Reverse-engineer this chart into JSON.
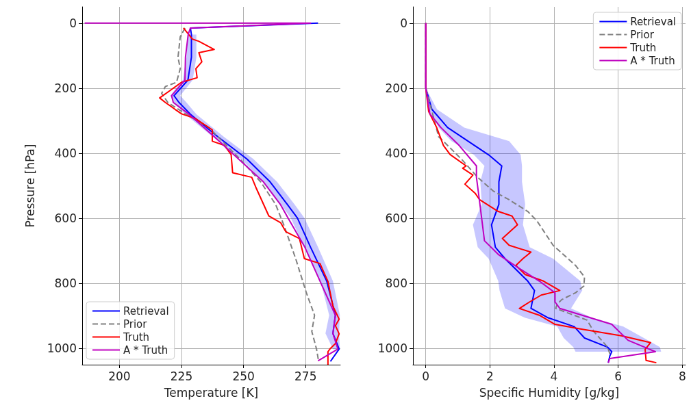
{
  "chart_data": [
    {
      "type": "line",
      "orientation": "horizontal",
      "xlabel": "Temperature [K]",
      "ylabel": "Pressure [hPa]",
      "xlim": [
        185,
        289
      ],
      "xticks": [
        200,
        225,
        250,
        275
      ],
      "ylim": [
        1050,
        -50
      ],
      "yticks": [
        0,
        200,
        400,
        600,
        800,
        1000
      ],
      "grid": true,
      "legend": "bottom left",
      "marker": "none",
      "series": [
        {
          "name": "Retrieval",
          "color": "#0000ff",
          "values": [
            280,
            228.6,
            229,
            229,
            227.6,
            222,
            224,
            228.6,
            239.6,
            251.4,
            260.7,
            267.6,
            271.7,
            277,
            283.5,
            287,
            286,
            288.5,
            285
          ],
          "x": [
            0,
            15,
            35,
            105,
            175,
            223,
            244,
            280,
            349,
            418,
            488,
            557,
            599,
            689,
            793,
            898,
            954,
            1002,
            1040
          ],
          "lower": [
            null,
            null,
            227.5,
            227,
            225.5,
            220.5,
            222,
            226.5,
            237.5,
            249,
            258,
            265,
            269,
            274.5,
            281,
            284.5,
            283,
            286,
            null
          ],
          "upper": [
            null,
            null,
            231,
            231,
            229.5,
            224.5,
            227,
            231,
            242,
            254,
            263.5,
            270.5,
            274.5,
            280,
            286,
            288.8,
            288.5,
            288.8,
            null
          ]
        },
        {
          "name": "Prior",
          "color": "#808080",
          "line_style": "dashed",
          "values": [
            226.4,
            224.5,
            223.6,
            224.5,
            223,
            218.5,
            217,
            219.5,
            226.6,
            236,
            248.6,
            256.9,
            262.9,
            266.2,
            271,
            275.3,
            278.6,
            277.5,
            279.4,
            280.2
          ],
          "x": [
            15,
            42,
            105,
            140,
            182,
            195,
            216,
            244,
            279,
            321,
            418,
            488,
            557,
            620,
            724,
            829,
            898,
            948,
            1002,
            1038
          ]
        },
        {
          "name": "Truth",
          "color": "#ff0000",
          "values": [
            225.8,
            229.4,
            232,
            238.2,
            232,
            233.2,
            230.8,
            231.3,
            225,
            221.2,
            216.2,
            218.5,
            225,
            230.5,
            237.4,
            237.4,
            242.3,
            245,
            245.6,
            253.3,
            255.2,
            260.2,
            265,
            267,
            272.5,
            274.5,
            280.8,
            281.6,
            284,
            286,
            288.5,
            287,
            288.5,
            287,
            285,
            284,
            284
          ],
          "x": [
            15,
            49,
            56,
            81,
            91,
            119,
            140,
            168,
            182,
            203,
            230,
            244,
            279,
            293,
            328,
            363,
            376,
            404,
            460,
            474,
            509,
            593,
            614,
            641,
            662,
            724,
            739,
            753,
            794,
            870,
            910,
            930,
            955,
            985,
            1000,
            1010,
            1050
          ]
        },
        {
          "name": "A * Truth",
          "color": "#bf00bf",
          "values": [
            186,
            277,
            228.6,
            227.7,
            226.6,
            226.4,
            221,
            221.7,
            228,
            238.2,
            258,
            264.8,
            267.9,
            274.7,
            280.8,
            287,
            286,
            288,
            280
          ],
          "x": [
            0,
            0,
            15,
            35,
            105,
            175,
            223,
            244,
            280,
            349,
            488,
            557,
            599,
            689,
            793,
            898,
            954,
            1002,
            1038
          ]
        }
      ]
    },
    {
      "type": "line",
      "orientation": "horizontal",
      "xlabel": "Specific Humidity [g/kg]",
      "xlim": [
        -0.4,
        8.1
      ],
      "xticks": [
        0,
        2,
        4,
        6,
        8
      ],
      "ylim": [
        1050,
        -50
      ],
      "yticks": [
        0,
        200,
        400,
        600,
        800,
        1000
      ],
      "grid": true,
      "legend": "top right",
      "marker": "none",
      "series": [
        {
          "name": "Retrieval",
          "color": "#0000ff",
          "values": [
            0,
            0,
            0.19,
            0.68,
            1.32,
            1.96,
            2.37,
            2.28,
            2.28,
            2.05,
            2.17,
            2.47,
            3.18,
            3.39,
            3.28,
            3.82,
            4.63,
            4.95,
            5.67,
            5.8,
            5.74,
            5.69
          ],
          "x": [
            0,
            200,
            265,
            321,
            363,
            405,
            439,
            488,
            557,
            620,
            689,
            724,
            793,
            822,
            877,
            906,
            933,
            968,
            996,
            1010,
            1023,
            1044
          ],
          "lower": [
            0,
            0,
            0.1,
            0.4,
            0.8,
            1.5,
            1.83,
            1.7,
            1.75,
            1.47,
            1.62,
            1.96,
            2.26,
            2.3,
            2.47,
            3.1,
            4.1,
            4.3,
            4.6,
            4.67,
            null,
            null
          ],
          "upper": [
            0,
            0,
            0.35,
            1.2,
            2.6,
            2.96,
            3,
            3,
            3.1,
            3.03,
            3.24,
            3.97,
            4.82,
            4.88,
            4.53,
            5.2,
            6.16,
            6.8,
            7.3,
            7.34,
            null,
            null
          ]
        },
        {
          "name": "Prior",
          "color": "#808080",
          "line_style": "dashed",
          "values": [
            0,
            0,
            0.4,
            0.62,
            1.11,
            1.62,
            2.1,
            2.6,
            3.18,
            3.46,
            3.97,
            4.67,
            4.95,
            4.93,
            4.67,
            4.24,
            4.1,
            4.05,
            5.03,
            5.24,
            5.67,
            5.74
          ],
          "x": [
            0,
            200,
            349,
            370,
            418,
            474,
            516,
            543,
            579,
            607,
            683,
            745,
            780,
            808,
            829,
            850,
            864,
            877,
            913,
            948,
            996,
            1017
          ]
        },
        {
          "name": "Truth",
          "color": "#ff0000",
          "values": [
            0,
            0,
            0.09,
            0.34,
            0.55,
            0.76,
            1.26,
            1.15,
            1.47,
            1.22,
            1.54,
            1.68,
            2.26,
            2.69,
            2.86,
            2.39,
            2.6,
            3.28,
            3.03,
            2.81,
            3.1,
            3.67,
            4.18,
            3.6,
            3.24,
            2.92,
            3.54,
            4.03,
            4.82,
            6.1,
            7.01,
            6.84,
            6.87,
            7.19
          ],
          "x": [
            0,
            200,
            272,
            321,
            376,
            404,
            439,
            446,
            467,
            495,
            523,
            543,
            579,
            593,
            620,
            662,
            683,
            704,
            724,
            745,
            773,
            793,
            822,
            836,
            857,
            877,
            898,
            926,
            940,
            961,
            982,
            1003,
            1037,
            1044
          ]
        },
        {
          "name": "A * Truth",
          "color": "#bf00bf",
          "values": [
            0,
            0,
            0.13,
            0.47,
            1.04,
            1.58,
            1.58,
            1.68,
            1.83,
            2.26,
            2.9,
            3.54,
            4.03,
            4.03,
            4.18,
            5.8,
            6.31,
            7.16,
            5.74,
            5.69
          ],
          "x": [
            0,
            200,
            279,
            321,
            376,
            439,
            474,
            550,
            669,
            711,
            753,
            793,
            829,
            857,
            877,
            926,
            975,
            1010,
            1031,
            1044
          ]
        }
      ]
    }
  ]
}
